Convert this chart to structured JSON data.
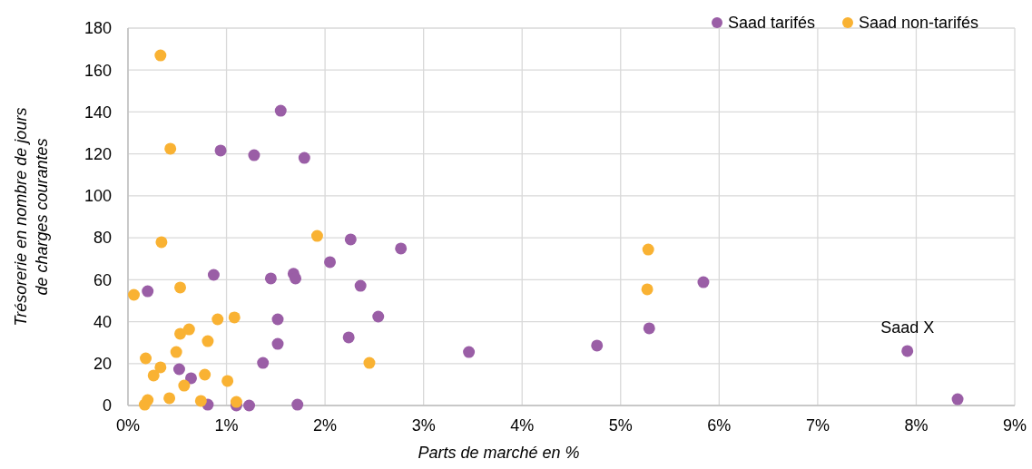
{
  "chart_data": {
    "type": "scatter",
    "xlabel": "Parts de marché en %",
    "ylabel": "Trésorerie en nombre de jours de charges courantes",
    "xlim": [
      0,
      9
    ],
    "xticks": [
      {
        "value": 0,
        "label": "0%"
      },
      {
        "value": 1,
        "label": "1%"
      },
      {
        "value": 2,
        "label": "2%"
      },
      {
        "value": 3,
        "label": "3%"
      },
      {
        "value": 4,
        "label": "4%"
      },
      {
        "value": 5,
        "label": "5%"
      },
      {
        "value": 6,
        "label": "6%"
      },
      {
        "value": 7,
        "label": "7%"
      },
      {
        "value": 8,
        "label": "8%"
      },
      {
        "value": 9,
        "label": "9%"
      }
    ],
    "ylim": [
      0,
      180
    ],
    "yticks": [
      0,
      20,
      40,
      60,
      80,
      100,
      120,
      140,
      160,
      180
    ],
    "grid": true,
    "legend": "top right",
    "marker": "circle",
    "annotations": [
      {
        "text": "Saad X",
        "x": 7.91,
        "y": 26
      }
    ],
    "series": [
      {
        "name": "Saad tarifés",
        "color": "#9a5ea6",
        "x": [
          0.94,
          1.28,
          1.55,
          1.79,
          0.87,
          0.2,
          1.45,
          1.68,
          1.7,
          2.26,
          2.77,
          2.05,
          2.36,
          1.52,
          2.54,
          1.52,
          2.24,
          1.37,
          0.52,
          0.64,
          0.81,
          1.1,
          1.23,
          1.72,
          3.46,
          4.76,
          5.29,
          5.84,
          7.91,
          8.42
        ],
        "values": [
          121.6,
          119.4,
          140.6,
          118.1,
          62.3,
          54.5,
          60.6,
          62.8,
          60.6,
          79.2,
          74.9,
          68.4,
          57.1,
          41.1,
          42.4,
          29.4,
          32.5,
          20.3,
          17.3,
          13,
          0.4,
          0,
          0,
          0.4,
          25.5,
          28.6,
          36.8,
          58.8,
          26,
          3
        ]
      },
      {
        "name": "Saad non-tarifés",
        "color": "#f9b233",
        "x": [
          0.33,
          0.43,
          0.34,
          0.06,
          0.53,
          1.92,
          0.91,
          1.08,
          0.53,
          0.62,
          0.49,
          0.18,
          0.81,
          0.33,
          0.26,
          0.78,
          1.01,
          0.57,
          0.42,
          0.74,
          0.2,
          0.17,
          1.1,
          2.45,
          5.28,
          5.27
        ],
        "values": [
          167,
          122.5,
          77.9,
          52.8,
          56.3,
          80.9,
          41.1,
          42,
          34.2,
          36.3,
          25.5,
          22.5,
          30.7,
          18.2,
          14.3,
          14.7,
          11.7,
          9.5,
          3.5,
          2.2,
          2.6,
          0.4,
          1.7,
          20.3,
          74.4,
          55.4
        ]
      }
    ]
  }
}
